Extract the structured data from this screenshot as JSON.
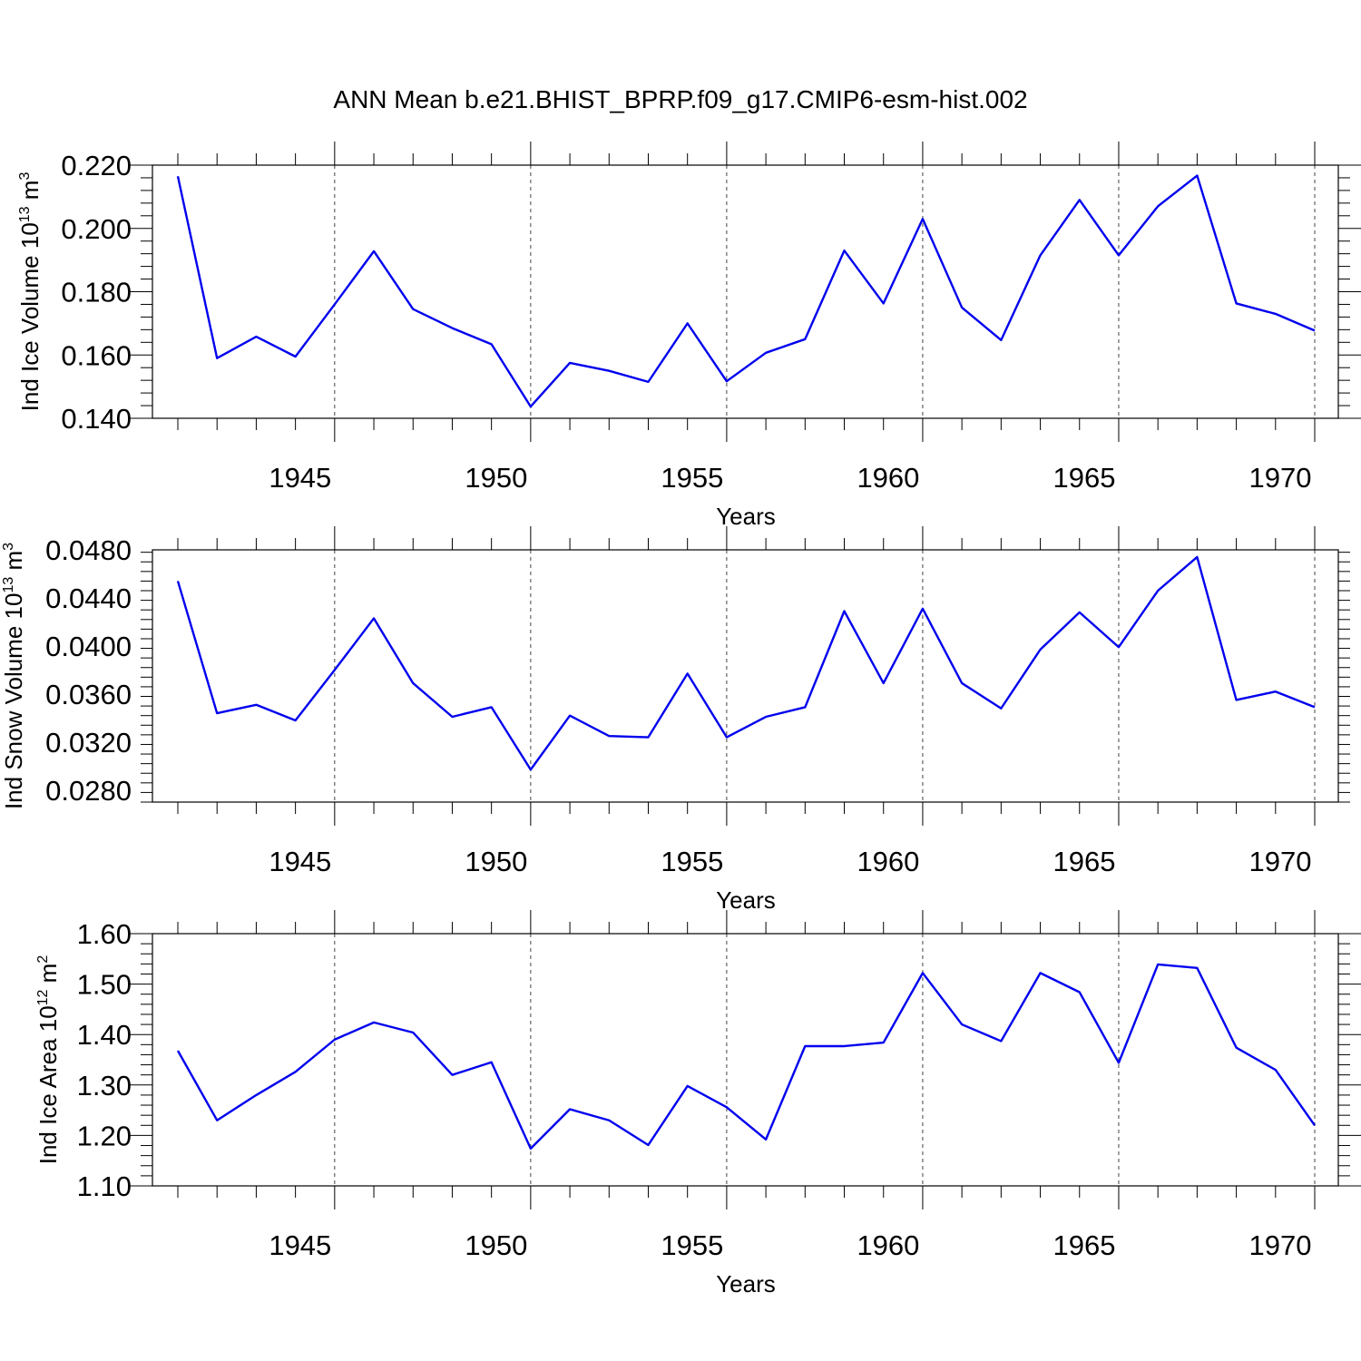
{
  "title": "ANN Mean b.e21.BHIST_BPRP.f09_g17.CMIP6-esm-hist.002",
  "colors": {
    "line": "#0000ee",
    "axis": "#000000",
    "grid": "#444444"
  },
  "chart_data": [
    {
      "type": "line",
      "ylabel": "Ind Ice Volume 10",
      "ylabel_exp": "13",
      "ylabel_unit": " m",
      "ylabel_unit_exp": "3",
      "xlabel": "Years",
      "xlim": [
        1941,
        1970
      ],
      "ylim": [
        0.14,
        0.22
      ],
      "yticks": [
        0.14,
        0.16,
        0.18,
        0.2,
        0.22
      ],
      "ytick_labels": [
        "0.140",
        "0.160",
        "0.180",
        "0.200",
        "0.220"
      ],
      "xticks": [
        1945,
        1950,
        1955,
        1960,
        1965,
        1970
      ],
      "xtick_labels": [
        "1945",
        "1950",
        "1955",
        "1960",
        "1965",
        "1970"
      ],
      "grid": "vertical dashed at major x ticks",
      "series": [
        {
          "x": [
            1941,
            1942,
            1943,
            1944,
            1945,
            1946,
            1947,
            1948,
            1949,
            1950,
            1951,
            1952,
            1953,
            1954,
            1955,
            1956,
            1957,
            1958,
            1959,
            1960,
            1961,
            1962,
            1963,
            1964,
            1965,
            1966,
            1967,
            1968,
            1969,
            1970
          ],
          "values": [
            0.2165,
            0.159,
            0.1658,
            0.1595,
            0.176,
            0.1928,
            0.1745,
            0.1685,
            0.1634,
            0.1437,
            0.1575,
            0.155,
            0.1515,
            0.17,
            0.1517,
            0.1607,
            0.165,
            0.193,
            0.1763,
            0.203,
            0.175,
            0.1647,
            0.1915,
            0.209,
            0.1915,
            0.207,
            0.2167,
            0.1763,
            0.173,
            0.1677
          ]
        }
      ]
    },
    {
      "type": "line",
      "ylabel": "Ind Snow Volume 10",
      "ylabel_exp": "13",
      "ylabel_unit": " m",
      "ylabel_unit_exp": "3",
      "xlabel": "Years",
      "xlim": [
        1941,
        1970
      ],
      "ylim": [
        0.027,
        0.048
      ],
      "yticks": [
        0.028,
        0.032,
        0.036,
        0.04,
        0.044,
        0.048
      ],
      "ytick_labels": [
        "0.0280",
        "0.0320",
        "0.0360",
        "0.0400",
        "0.0440",
        "0.0480"
      ],
      "xticks": [
        1945,
        1950,
        1955,
        1960,
        1965,
        1970
      ],
      "xtick_labels": [
        "1945",
        "1950",
        "1955",
        "1960",
        "1965",
        "1970"
      ],
      "grid": "vertical dashed at major x ticks",
      "series": [
        {
          "x": [
            1941,
            1942,
            1943,
            1944,
            1945,
            1946,
            1947,
            1948,
            1949,
            1950,
            1951,
            1952,
            1953,
            1954,
            1955,
            1956,
            1957,
            1958,
            1959,
            1960,
            1961,
            1962,
            1963,
            1964,
            1965,
            1966,
            1967,
            1968,
            1969,
            1970
          ],
          "values": [
            0.0454,
            0.0344,
            0.0351,
            0.0338,
            0.038,
            0.0423,
            0.0369,
            0.0341,
            0.0349,
            0.0297,
            0.0342,
            0.0325,
            0.0324,
            0.0377,
            0.0324,
            0.0341,
            0.0349,
            0.0429,
            0.0369,
            0.0431,
            0.0369,
            0.0348,
            0.0397,
            0.0428,
            0.0399,
            0.0446,
            0.0474,
            0.0355,
            0.0362,
            0.0349
          ]
        }
      ]
    },
    {
      "type": "line",
      "ylabel": "Ind Ice Area 10",
      "ylabel_exp": "12",
      "ylabel_unit": " m",
      "ylabel_unit_exp": "2",
      "xlabel": "Years",
      "xlim": [
        1941,
        1970
      ],
      "ylim": [
        1.1,
        1.6
      ],
      "yticks": [
        1.1,
        1.2,
        1.3,
        1.4,
        1.5,
        1.6
      ],
      "ytick_labels": [
        "1.10",
        "1.20",
        "1.30",
        "1.40",
        "1.50",
        "1.60"
      ],
      "xticks": [
        1945,
        1950,
        1955,
        1960,
        1965,
        1970
      ],
      "xtick_labels": [
        "1945",
        "1950",
        "1955",
        "1960",
        "1965",
        "1970"
      ],
      "grid": "vertical dashed at major x ticks",
      "series": [
        {
          "x": [
            1941,
            1942,
            1943,
            1944,
            1945,
            1946,
            1947,
            1948,
            1949,
            1950,
            1951,
            1952,
            1953,
            1954,
            1955,
            1956,
            1957,
            1958,
            1959,
            1960,
            1961,
            1962,
            1963,
            1964,
            1965,
            1966,
            1967,
            1968,
            1969,
            1970
          ],
          "values": [
            1.368,
            1.23,
            1.28,
            1.326,
            1.39,
            1.424,
            1.404,
            1.32,
            1.345,
            1.174,
            1.252,
            1.23,
            1.181,
            1.298,
            1.256,
            1.192,
            1.377,
            1.377,
            1.384,
            1.522,
            1.42,
            1.387,
            1.522,
            1.484,
            1.344,
            1.539,
            1.532,
            1.374,
            1.33,
            1.22
          ]
        }
      ]
    }
  ]
}
